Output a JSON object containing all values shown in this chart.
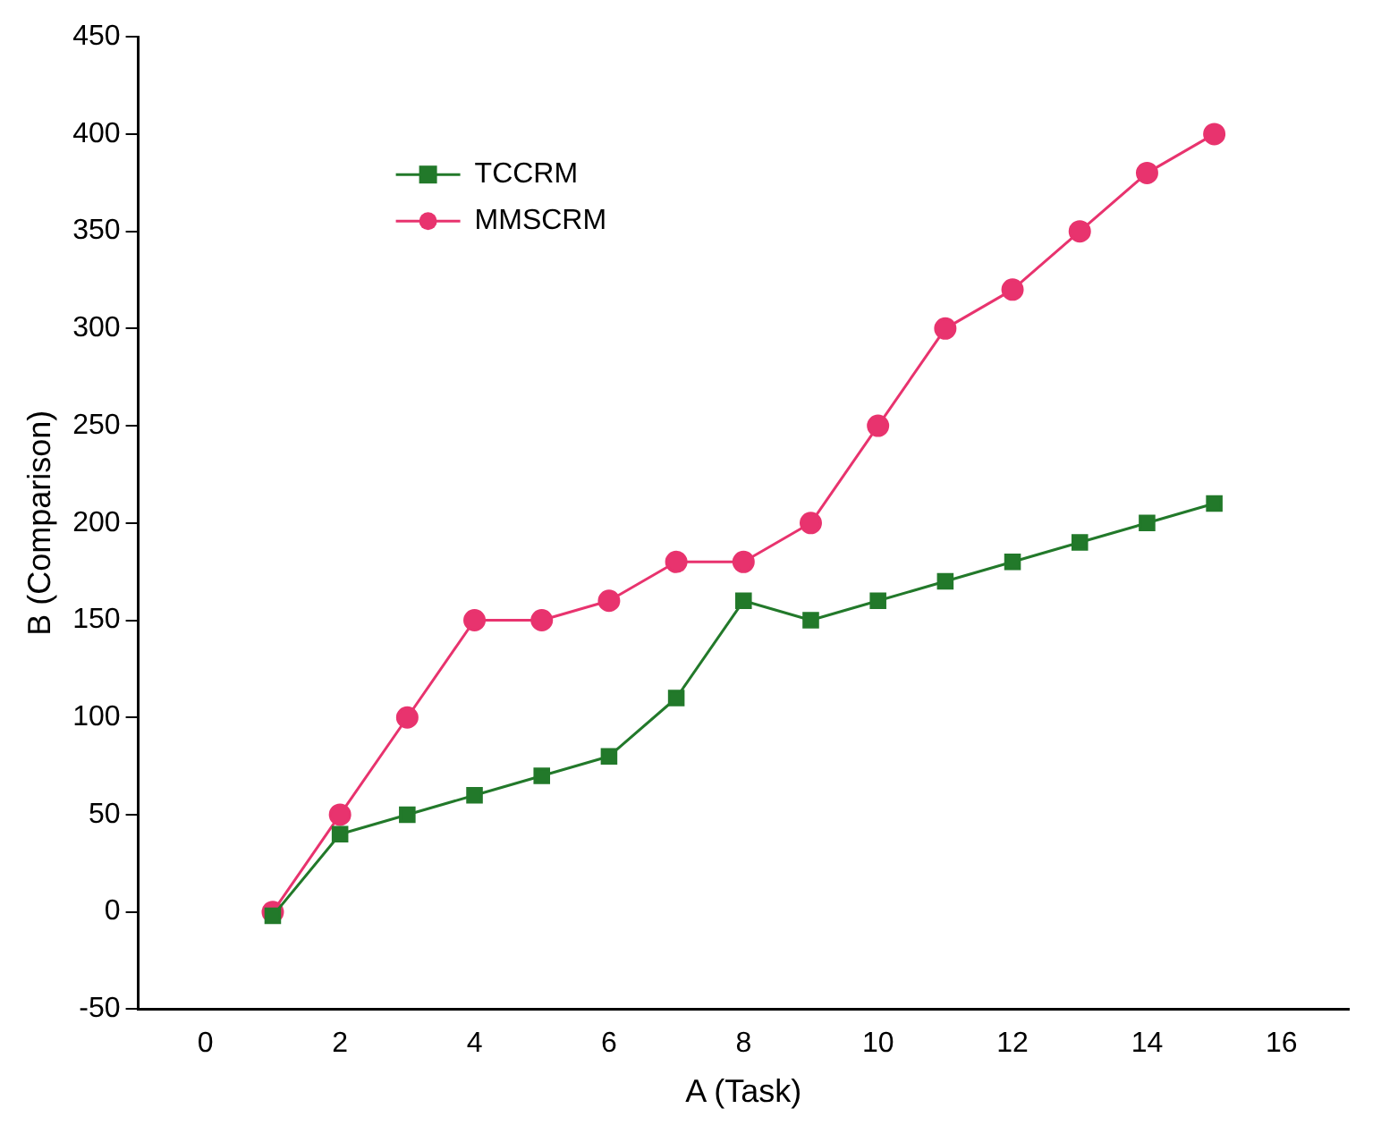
{
  "chart_data": {
    "type": "line",
    "xlabel": "A (Task)",
    "ylabel": "B (Comparison)",
    "x": [
      1,
      2,
      3,
      4,
      5,
      6,
      7,
      8,
      9,
      10,
      11,
      12,
      13,
      14,
      15
    ],
    "series": [
      {
        "name": "TCCRM",
        "color": "#22792a",
        "marker": "square",
        "values": [
          -2,
          40,
          50,
          60,
          70,
          80,
          110,
          160,
          150,
          160,
          170,
          180,
          190,
          200,
          210
        ]
      },
      {
        "name": "MMSCRM",
        "color": "#e8336e",
        "marker": "circle",
        "values": [
          0,
          50,
          100,
          150,
          150,
          160,
          180,
          180,
          200,
          250,
          300,
          320,
          350,
          380,
          400
        ]
      }
    ],
    "xlim": [
      -1,
      17
    ],
    "xticks": [
      0,
      2,
      4,
      6,
      8,
      10,
      12,
      14,
      16
    ],
    "ylim": [
      -50,
      450
    ],
    "yticks": [
      -50,
      0,
      50,
      100,
      150,
      200,
      250,
      300,
      350,
      400,
      450
    ],
    "grid": false,
    "legend": "top left",
    "line_style": "solid"
  }
}
